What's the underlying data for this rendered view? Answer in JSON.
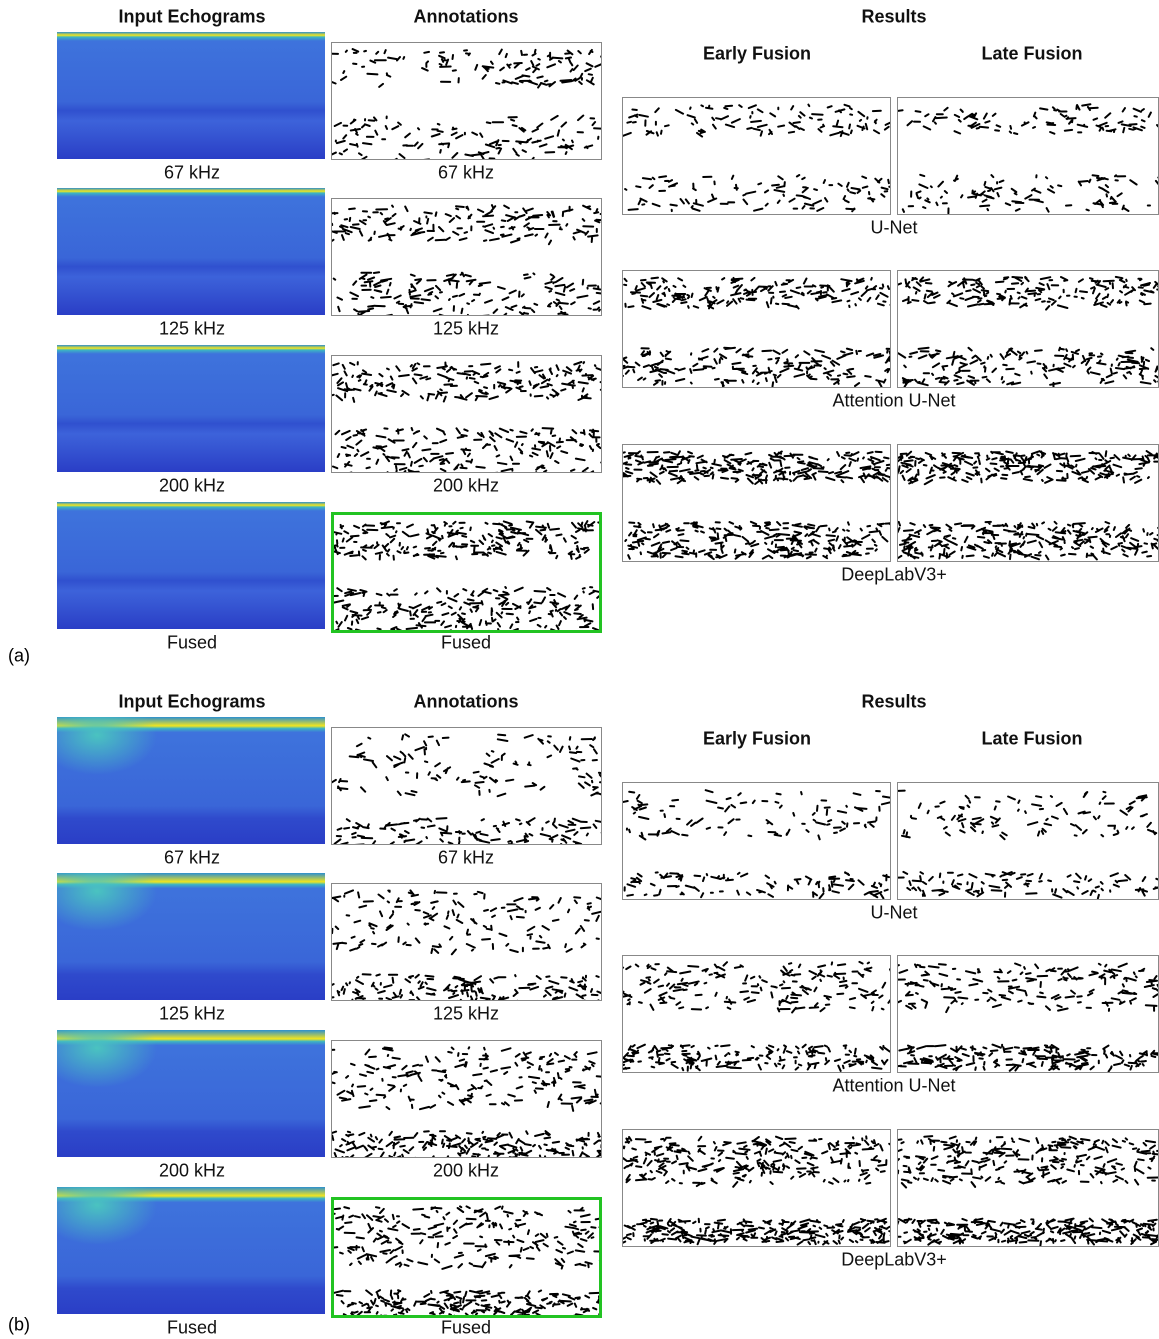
{
  "panels": [
    {
      "label": "(a)",
      "input_header": "Input Echograms",
      "annotation_header": "Annotations",
      "results_header": "Results",
      "input_captions": [
        "67 kHz",
        "125 kHz",
        "200 kHz",
        "Fused"
      ],
      "annotation_captions": [
        "67 kHz",
        "125 kHz",
        "200 kHz",
        "Fused"
      ],
      "columns": [
        "Early Fusion",
        "Late Fusion"
      ],
      "models": [
        "U-Net",
        "Attention U-Net",
        "DeepLabV3+"
      ]
    },
    {
      "label": "(b)",
      "input_header": "Input Echograms",
      "annotation_header": "Annotations",
      "results_header": "Results",
      "input_captions": [
        "67 kHz",
        "125 kHz",
        "200 kHz",
        "Fused"
      ],
      "annotation_captions": [
        "67 kHz",
        "125 kHz",
        "200 kHz",
        "Fused"
      ],
      "columns": [
        "Early Fusion",
        "Late Fusion"
      ],
      "models": [
        "U-Net",
        "Attention U-Net",
        "DeepLabV3+"
      ]
    }
  ]
}
